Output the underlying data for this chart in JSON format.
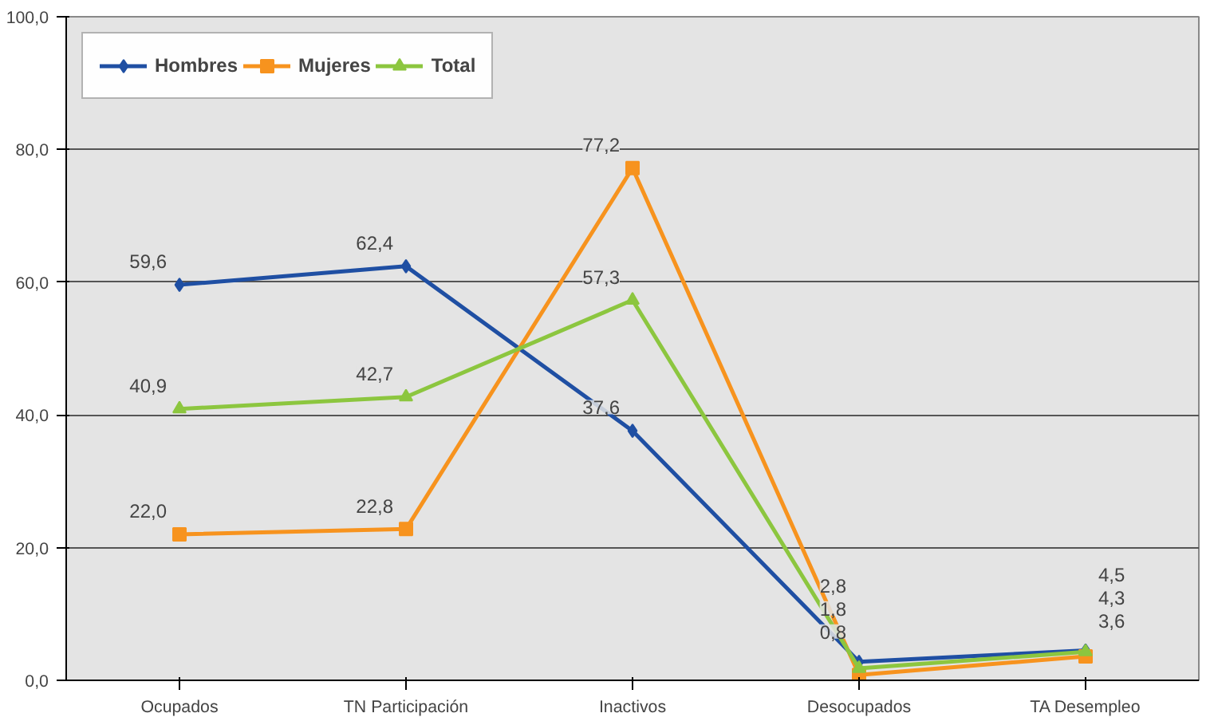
{
  "chart_data": {
    "type": "line",
    "categories": [
      "Ocupados",
      "TN Participación",
      "Inactivos",
      "Desocupados",
      "TA Desempleo"
    ],
    "series": [
      {
        "name": "Hombres",
        "color": "#1f4fa3",
        "marker": "diamond",
        "values": [
          59.6,
          62.4,
          37.6,
          2.8,
          4.5
        ],
        "value_labels": [
          "59,6",
          "62,4",
          "37,6",
          "2,8",
          "4,5"
        ]
      },
      {
        "name": "Mujeres",
        "color": "#f7931e",
        "marker": "square",
        "values": [
          22.0,
          22.8,
          77.2,
          0.8,
          3.6
        ],
        "value_labels": [
          "22,0",
          "22,8",
          "77,2",
          "0,8",
          "3,6"
        ]
      },
      {
        "name": "Total",
        "color": "#8cc63f",
        "marker": "triangle",
        "values": [
          40.9,
          42.7,
          57.3,
          1.8,
          4.3
        ],
        "value_labels": [
          "40,9",
          "42,7",
          "57,3",
          "1,8",
          "4,3"
        ]
      }
    ],
    "ylim": [
      0,
      100
    ],
    "yticks": [
      {
        "value": 0,
        "label": "0,0"
      },
      {
        "value": 20,
        "label": "20,0"
      },
      {
        "value": 40,
        "label": "40,0"
      },
      {
        "value": 60,
        "label": "60,0"
      },
      {
        "value": 80,
        "label": "80,0"
      },
      {
        "value": 100,
        "label": "100,0"
      }
    ],
    "grid": "y",
    "legend": "top left",
    "line_style": "solid"
  }
}
